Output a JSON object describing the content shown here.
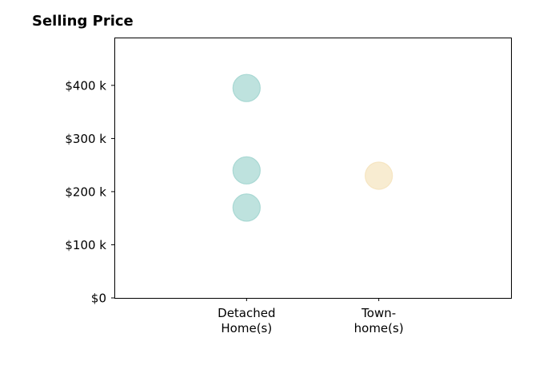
{
  "chart_data": {
    "type": "scatter",
    "title": "Selling Price",
    "xlabel": "",
    "ylabel": "",
    "categories": [
      [
        "Detached",
        "Home(s)"
      ],
      [
        "Town-",
        "home(s)"
      ]
    ],
    "x_range": [
      -1,
      2
    ],
    "ylim": [
      0,
      490000
    ],
    "y_ticks": [
      0,
      100000,
      200000,
      300000,
      400000
    ],
    "y_tick_labels": [
      "$0",
      "$100 k",
      "$200 k",
      "$300 k",
      "$400 k"
    ],
    "grid": false,
    "points": [
      {
        "category": 0,
        "value": 395000,
        "color": "#a8d8d3"
      },
      {
        "category": 0,
        "value": 240000,
        "color": "#a8d8d3"
      },
      {
        "category": 0,
        "value": 170000,
        "color": "#a8d8d3"
      },
      {
        "category": 1,
        "value": 230000,
        "color": "#f6e5c1"
      }
    ]
  }
}
